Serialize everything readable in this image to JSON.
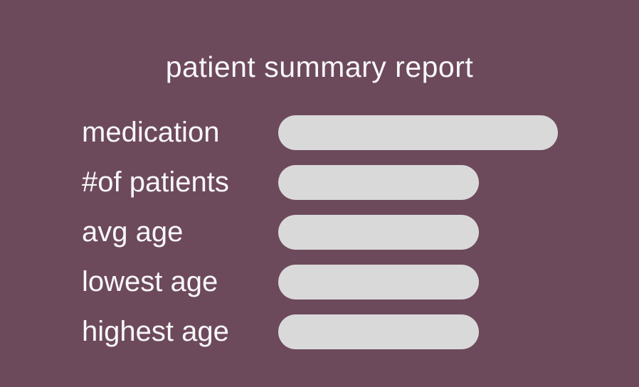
{
  "title": "patient summary report",
  "colors": {
    "background": "#6D495C",
    "field": "#D9D9D9",
    "text": "#F8F8F8"
  },
  "fields": [
    {
      "label": "medication",
      "value": ""
    },
    {
      "label": "#of patients",
      "value": ""
    },
    {
      "label": "avg age",
      "value": ""
    },
    {
      "label": "lowest age",
      "value": ""
    },
    {
      "label": "highest age",
      "value": ""
    }
  ]
}
